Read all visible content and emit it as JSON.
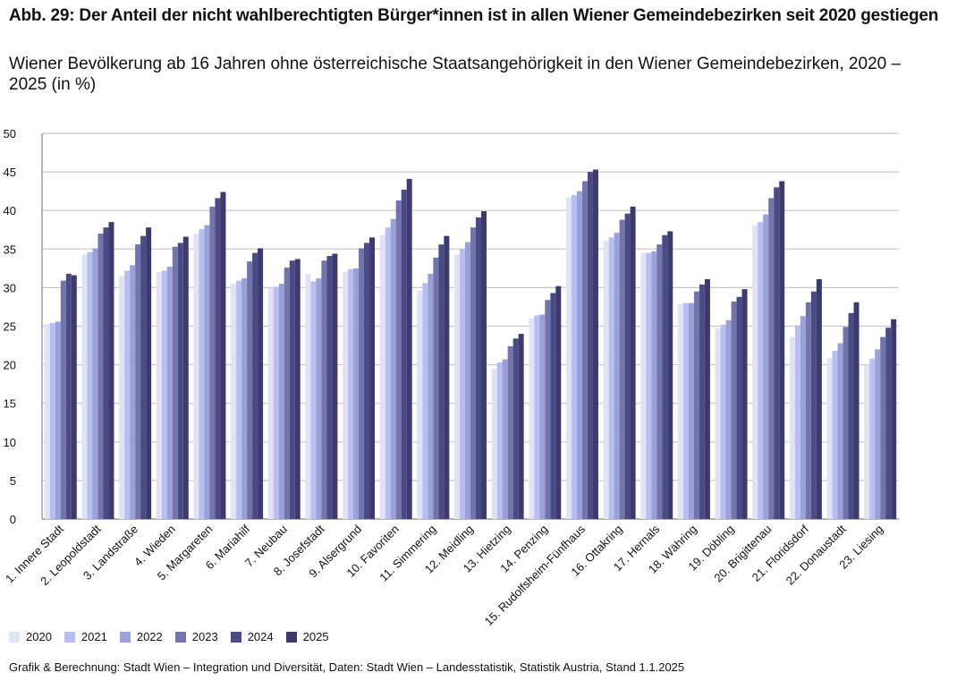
{
  "title": "Abb. 29: Der Anteil der nicht wahlberechtigten Bürger*innen ist in allen Wiener Gemeindebezirken seit 2020 gestiegen",
  "subtitle": "Wiener Bevölkerung ab 16 Jahren ohne österreichische Staatsangehörigkeit in den Wiener Gemeindebezirken, 2020 – 2025 (in %)",
  "source": "Grafik & Berechnung: Stadt Wien – Integration und Diversität, Daten: Stadt Wien – Landesstatistik, Statistik Austria, Stand 1.1.2025",
  "chart_data": {
    "type": "bar",
    "title": "Abb. 29: Der Anteil der nicht wahlberechtigten Bürger*innen ist in allen Wiener Gemeindebezirken seit 2020 gestiegen",
    "xlabel": "",
    "ylabel": "",
    "ylim": [
      0,
      50
    ],
    "yticks": [
      "0",
      "5",
      "10",
      "15",
      "20",
      "25",
      "30",
      "35",
      "40",
      "45",
      "50"
    ],
    "grid": true,
    "legend": "bottom-left",
    "categories": [
      "1. Innere Stadt",
      "2. Leopoldstadt",
      "3. Landstraße",
      "4. Wieden",
      "5. Margareten",
      "6. Mariahilf",
      "7. Neubau",
      "8. Josefstadt",
      "9. Alsergrund",
      "10. Favoriten",
      "11. Simmering",
      "12. Meidling",
      "13. Hietzing",
      "14. Penzing",
      "15. Rudolfsheim-Fünfhaus",
      "16. Ottakring",
      "17. Hernals",
      "18. Währing",
      "19. Döbling",
      "20. Brigittenau",
      "21. Floridsdorf",
      "22. Donaustadt",
      "23. Liesing"
    ],
    "series": [
      {
        "name": "2020",
        "color": "#e2e2f6",
        "values": [
          25.3,
          34.3,
          31.5,
          32.0,
          37.0,
          30.5,
          30.0,
          31.8,
          32.0,
          36.8,
          29.6,
          34.3,
          19.5,
          26.0,
          41.7,
          36.1,
          34.5,
          27.9,
          24.7,
          38.1,
          23.6,
          20.9,
          19.9
        ]
      },
      {
        "name": "2021",
        "color": "#b8bef0",
        "values": [
          25.4,
          34.6,
          32.2,
          32.2,
          37.6,
          30.9,
          30.1,
          30.8,
          32.4,
          37.8,
          30.6,
          35.0,
          20.3,
          26.4,
          42.0,
          36.5,
          34.5,
          28.0,
          25.2,
          38.5,
          25.1,
          21.8,
          20.8
        ]
      },
      {
        "name": "2022",
        "color": "#9aa0d8",
        "values": [
          25.6,
          35.1,
          32.9,
          32.7,
          38.1,
          31.2,
          30.5,
          31.2,
          32.5,
          38.9,
          31.8,
          35.9,
          20.7,
          26.5,
          42.5,
          37.1,
          34.7,
          28.0,
          25.8,
          39.5,
          26.3,
          22.8,
          22.0
        ]
      },
      {
        "name": "2023",
        "color": "#7474ac",
        "values": [
          30.9,
          37.0,
          35.6,
          35.3,
          40.5,
          33.4,
          32.6,
          33.5,
          35.1,
          41.3,
          33.9,
          37.8,
          22.4,
          28.4,
          43.8,
          38.8,
          35.6,
          29.5,
          28.2,
          41.6,
          28.1,
          24.9,
          23.6
        ]
      },
      {
        "name": "2024",
        "color": "#4a4a84",
        "values": [
          31.8,
          37.8,
          36.7,
          35.8,
          41.6,
          34.5,
          33.5,
          34.1,
          35.8,
          42.7,
          35.6,
          39.1,
          23.4,
          29.3,
          45.0,
          39.6,
          36.8,
          30.4,
          28.8,
          43.0,
          29.5,
          26.7,
          24.8
        ]
      },
      {
        "name": "2025",
        "color": "#3e3a6e",
        "values": [
          31.6,
          38.5,
          37.8,
          36.6,
          42.4,
          35.1,
          33.7,
          34.4,
          36.5,
          44.1,
          36.7,
          39.9,
          24.0,
          30.2,
          45.3,
          40.5,
          37.3,
          31.1,
          29.8,
          43.8,
          31.1,
          28.1,
          25.9
        ]
      }
    ]
  }
}
